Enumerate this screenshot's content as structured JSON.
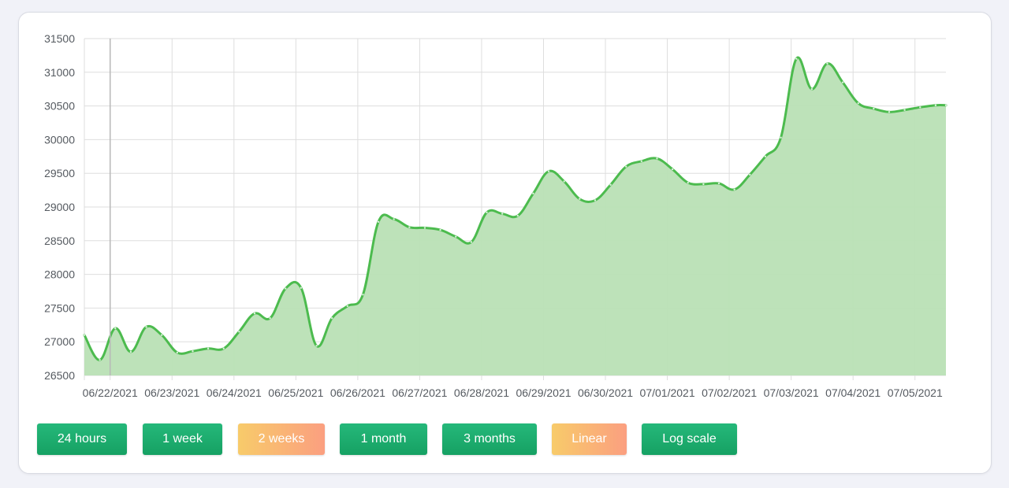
{
  "chart_data": {
    "type": "area",
    "title": "",
    "xlabel": "",
    "ylabel": "",
    "ylim": [
      26500,
      31500
    ],
    "y_ticks": [
      "26500",
      "27000",
      "27500",
      "28000",
      "28500",
      "29000",
      "29500",
      "30000",
      "30500",
      "31000",
      "31500"
    ],
    "x_ticks": [
      "06/22/2021",
      "06/23/2021",
      "06/24/2021",
      "06/25/2021",
      "06/26/2021",
      "06/27/2021",
      "06/28/2021",
      "06/29/2021",
      "06/30/2021",
      "07/01/2021",
      "07/02/2021",
      "07/03/2021",
      "07/04/2021",
      "07/05/2021"
    ],
    "x_start": "06/21/2021 14:00",
    "x_end": "07/05/2021 12:00",
    "grid": true,
    "line_color": "#4cbb4e",
    "fill_color": "#b9e0b5",
    "series": [
      {
        "x": [
          "06/21/2021 14:00",
          "06/21/2021 20:00",
          "06/22/2021 02:00",
          "06/22/2021 08:00",
          "06/22/2021 14:00",
          "06/22/2021 20:00",
          "06/23/2021 02:00",
          "06/23/2021 08:00",
          "06/23/2021 14:00",
          "06/23/2021 20:00",
          "06/24/2021 02:00",
          "06/24/2021 08:00",
          "06/24/2021 14:00",
          "06/24/2021 20:00",
          "06/25/2021 02:00",
          "06/25/2021 08:00",
          "06/25/2021 14:00",
          "06/25/2021 20:00",
          "06/26/2021 02:00",
          "06/26/2021 08:00",
          "06/26/2021 14:00",
          "06/26/2021 20:00",
          "06/27/2021 02:00",
          "06/27/2021 08:00",
          "06/27/2021 14:00",
          "06/27/2021 20:00",
          "06/28/2021 02:00",
          "06/28/2021 08:00",
          "06/28/2021 14:00",
          "06/28/2021 20:00",
          "06/29/2021 02:00",
          "06/29/2021 08:00",
          "06/29/2021 14:00",
          "06/29/2021 20:00",
          "06/30/2021 02:00",
          "06/30/2021 08:00",
          "06/30/2021 14:00",
          "06/30/2021 20:00",
          "07/01/2021 02:00",
          "07/01/2021 08:00",
          "07/01/2021 14:00",
          "07/01/2021 20:00",
          "07/02/2021 02:00",
          "07/02/2021 08:00",
          "07/02/2021 14:00",
          "07/02/2021 20:00",
          "07/03/2021 02:00",
          "07/03/2021 08:00",
          "07/03/2021 14:00",
          "07/03/2021 20:00",
          "07/04/2021 02:00",
          "07/04/2021 08:00",
          "07/04/2021 14:00",
          "07/04/2021 20:00",
          "07/05/2021 02:00",
          "07/05/2021 08:00",
          "07/05/2021 12:00"
        ],
        "values": [
          27100,
          26730,
          27200,
          26850,
          27220,
          27100,
          26840,
          26860,
          26900,
          26900,
          27150,
          27420,
          27350,
          27790,
          27800,
          26940,
          27350,
          27530,
          27700,
          28780,
          28820,
          28700,
          28690,
          28660,
          28560,
          28480,
          28920,
          28900,
          28870,
          29200,
          29530,
          29380,
          29120,
          29100,
          29330,
          29600,
          29680,
          29720,
          29560,
          29360,
          29340,
          29350,
          29260,
          29480,
          29750,
          30030,
          31200,
          30750,
          31130,
          30850,
          30540,
          30460,
          30410,
          30440,
          30480,
          30510,
          30510
        ]
      }
    ]
  },
  "controls": {
    "buttons": [
      {
        "label": "24 hours",
        "active": false
      },
      {
        "label": "1 week",
        "active": false
      },
      {
        "label": "2 weeks",
        "active": true
      },
      {
        "label": "1 month",
        "active": false
      },
      {
        "label": "3 months",
        "active": false
      },
      {
        "label": "Linear",
        "active": true
      },
      {
        "label": "Log scale",
        "active": false
      }
    ]
  }
}
